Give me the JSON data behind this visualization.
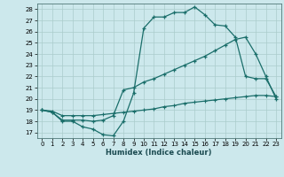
{
  "xlabel": "Humidex (Indice chaleur)",
  "bg_color": "#cce8ec",
  "grid_color": "#aacccc",
  "line_color": "#1a6e6a",
  "xlim": [
    -0.5,
    23.5
  ],
  "ylim": [
    16.5,
    28.5
  ],
  "xticks": [
    0,
    1,
    2,
    3,
    4,
    5,
    6,
    7,
    8,
    9,
    10,
    11,
    12,
    13,
    14,
    15,
    16,
    17,
    18,
    19,
    20,
    21,
    22,
    23
  ],
  "yticks": [
    17,
    18,
    19,
    20,
    21,
    22,
    23,
    24,
    25,
    26,
    27,
    28
  ],
  "line1_x": [
    0,
    1,
    2,
    3,
    4,
    5,
    6,
    7,
    8,
    9,
    10,
    11,
    12,
    13,
    14,
    15,
    16,
    17,
    18,
    19,
    20,
    21,
    22,
    23
  ],
  "line1_y": [
    19,
    18.8,
    18,
    18,
    17.5,
    17.3,
    16.8,
    16.7,
    18,
    20.5,
    26.3,
    27.3,
    27.3,
    27.7,
    27.7,
    28.2,
    27.5,
    26.6,
    26.5,
    25.5,
    22,
    21.8,
    21.8,
    20.2
  ],
  "line2_x": [
    0,
    1,
    2,
    3,
    4,
    5,
    6,
    7,
    8,
    9,
    10,
    11,
    12,
    13,
    14,
    15,
    16,
    17,
    18,
    19,
    20,
    21,
    22,
    23
  ],
  "line2_y": [
    19.0,
    18.8,
    18.1,
    18.1,
    18.1,
    18.0,
    18.1,
    18.5,
    20.8,
    21.0,
    21.5,
    21.8,
    22.2,
    22.6,
    23.0,
    23.4,
    23.8,
    24.3,
    24.8,
    25.3,
    25.5,
    24.0,
    22.0,
    20.0
  ],
  "line3_x": [
    0,
    1,
    2,
    3,
    4,
    5,
    6,
    7,
    8,
    9,
    10,
    11,
    12,
    13,
    14,
    15,
    16,
    17,
    18,
    19,
    20,
    21,
    22,
    23
  ],
  "line3_y": [
    19.0,
    18.9,
    18.5,
    18.5,
    18.5,
    18.5,
    18.6,
    18.7,
    18.8,
    18.9,
    19.0,
    19.1,
    19.3,
    19.4,
    19.6,
    19.7,
    19.8,
    19.9,
    20.0,
    20.1,
    20.2,
    20.3,
    20.3,
    20.2
  ]
}
